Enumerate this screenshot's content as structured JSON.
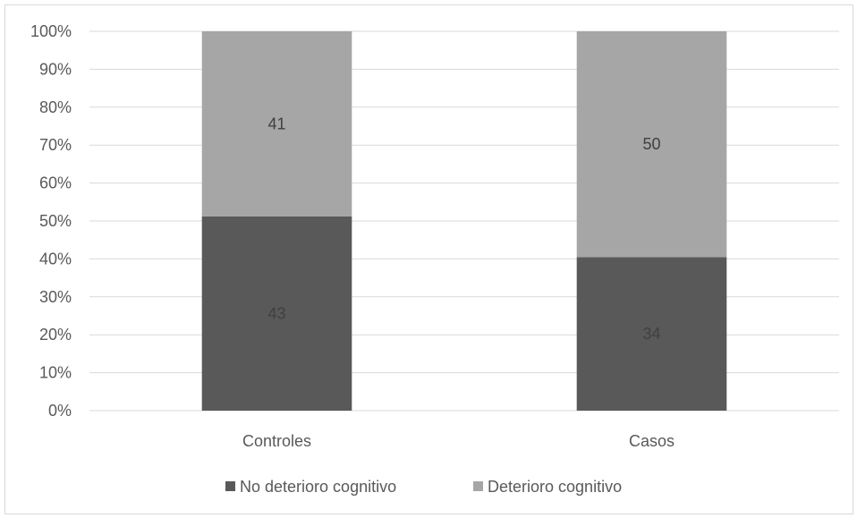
{
  "chart_data": {
    "type": "bar",
    "stacked": "percent",
    "categories": [
      "Controles",
      "Casos"
    ],
    "series": [
      {
        "name": "No deterioro cognitivo",
        "values": [
          43,
          34
        ],
        "color": "#595959"
      },
      {
        "name": "Deterioro cognitivo",
        "values": [
          41,
          50
        ],
        "color": "#a6a6a6"
      }
    ],
    "ylim": [
      0,
      100
    ],
    "y_ticks": [
      "0%",
      "10%",
      "20%",
      "30%",
      "40%",
      "50%",
      "60%",
      "70%",
      "80%",
      "90%",
      "100%"
    ],
    "grid": true,
    "legend": "bottom",
    "title": "",
    "xlabel": "",
    "ylabel": "",
    "colors": {
      "gridline": "#d9d9d9",
      "axis_text": "#595959",
      "label_on_dark": "#404040",
      "label_on_light": "#404040"
    }
  }
}
